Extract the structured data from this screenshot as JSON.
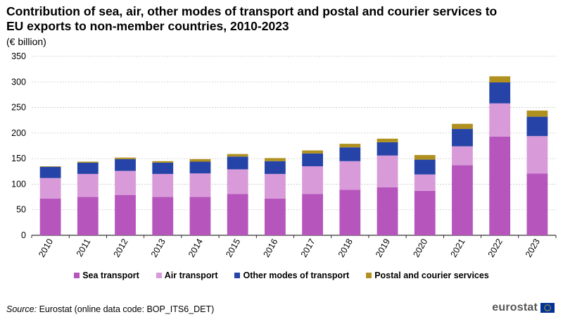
{
  "chart_data": {
    "type": "bar",
    "stacked": true,
    "title": "Contribution of sea, air, other modes of transport and postal and courier services to EU exports to non-member countries, 2010-2023",
    "subtitle": "(€ billion)",
    "xlabel": "",
    "ylabel": "(€ billion)",
    "ylim": [
      0,
      350
    ],
    "yticks": [
      0,
      50,
      100,
      150,
      200,
      250,
      300,
      350
    ],
    "grid": true,
    "legend_position": "bottom",
    "categories": [
      "2010",
      "2011",
      "2012",
      "2013",
      "2014",
      "2015",
      "2016",
      "2017",
      "2018",
      "2019",
      "2020",
      "2021",
      "2022",
      "2023"
    ],
    "series": [
      {
        "name": "Sea transport",
        "color": "#b656bd",
        "values": [
          72,
          75,
          79,
          75,
          75,
          81,
          72,
          81,
          89,
          94,
          87,
          137,
          193,
          121
        ]
      },
      {
        "name": "Air transport",
        "color": "#d99ad9",
        "values": [
          40,
          45,
          47,
          45,
          46,
          48,
          48,
          54,
          56,
          62,
          32,
          37,
          65,
          73
        ]
      },
      {
        "name": "Other modes of transport",
        "color": "#2644a7",
        "values": [
          22,
          22,
          23,
          22,
          23,
          25,
          25,
          25,
          27,
          26,
          29,
          34,
          41,
          38
        ]
      },
      {
        "name": "Postal and courier services",
        "color": "#b09120",
        "values": [
          1,
          2,
          3,
          3,
          5,
          5,
          6,
          6,
          7,
          7,
          9,
          10,
          12,
          12
        ]
      }
    ]
  },
  "source": {
    "label": "Source:",
    "text": "Eurostat (online data code: BOP_ITS6_DET)"
  },
  "logo": {
    "text": "eurostat"
  }
}
